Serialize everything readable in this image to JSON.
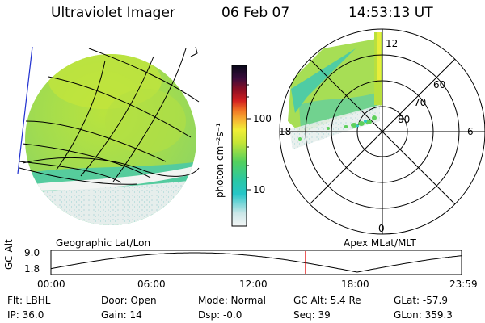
{
  "header": {
    "instrument": "Ultraviolet Imager",
    "date": "06 Feb 07",
    "time": "14:53:13 UT"
  },
  "colorbar": {
    "unit_label": "photon cm⁻²s⁻¹",
    "ticks": [
      "100",
      "10"
    ]
  },
  "polar_plot": {
    "latitude_labels": [
      "80",
      "70",
      "60"
    ],
    "mlt_labels": [
      "12",
      "18",
      "6",
      "0"
    ],
    "caption": "Apex MLat/MLT"
  },
  "geo_plot": {
    "caption": "Geographic Lat/Lon"
  },
  "altitude_plot": {
    "ylabel": "GC Alt",
    "y_ticks": [
      "9.0",
      "1.8"
    ],
    "x_ticks": [
      "00:00",
      "06:00",
      "12:00",
      "18:00",
      "23:59"
    ],
    "current_time_marker_hours": 14.88,
    "min_alt_time_hours": 17.9
  },
  "info": {
    "filter": "Flt: LBHL",
    "door": "Door: Open",
    "mode": "Mode: Normal",
    "gc_alt": "GC Alt: 5.4 Re",
    "glat": "GLat: -57.9",
    "ip": "IP: 36.0",
    "gain": "Gain: 14",
    "dsp": "Dsp:   -0.0",
    "seq": "Seq: 39",
    "glon": "GLon: 359.3"
  },
  "colors": {
    "marker": "#e00000",
    "grid": "#000000",
    "noise": "#dfe9e6",
    "green": "#a6e04a",
    "cyan": "#27c9c5"
  }
}
